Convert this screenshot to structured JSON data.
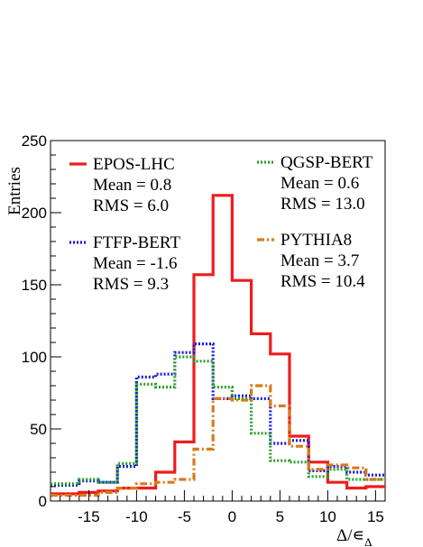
{
  "chart_data": {
    "type": "histogram",
    "xlabel": "Δ/∊",
    "xlabel_sub": "Δ",
    "ylabel": "Entries",
    "xlim": [
      -19,
      16
    ],
    "ylim": [
      0,
      250
    ],
    "x_ticks": [
      -15,
      -10,
      -5,
      0,
      5,
      10,
      15
    ],
    "y_ticks": [
      0,
      50,
      100,
      150,
      200,
      250
    ],
    "bin_edges": [
      -19,
      -16,
      -14,
      -12,
      -10,
      -8,
      -6,
      -4,
      -2,
      0,
      2,
      4,
      6,
      8,
      10,
      12,
      14,
      16
    ],
    "series": [
      {
        "name": "EPOS-LHC",
        "mean_label": "Mean = 0.8",
        "rms_label": "RMS = 6.0",
        "color": "#ee1c1c",
        "dash": "",
        "values": [
          5,
          6,
          7,
          9,
          9,
          20,
          41,
          157,
          212,
          153,
          116,
          102,
          45,
          27,
          13,
          9,
          10
        ]
      },
      {
        "name": "FTFP-BERT",
        "mean_label": "Mean = -1.6",
        "rms_label": "RMS = 9.3",
        "color": "#1a1ae0",
        "dash": "2,2",
        "values": [
          11,
          14,
          13,
          24,
          86,
          88,
          103,
          109,
          71,
          73,
          71,
          40,
          42,
          21,
          24,
          20,
          18
        ]
      },
      {
        "name": "QGSP-BERT",
        "mean_label": "Mean = 0.6",
        "rms_label": "RMS = 13.0",
        "color": "#2ca02c",
        "dash": "2,2",
        "values": [
          12,
          15,
          13,
          26,
          81,
          79,
          100,
          97,
          79,
          71,
          47,
          28,
          27,
          17,
          22,
          15,
          15
        ]
      },
      {
        "name": "PYTHIA8",
        "mean_label": "Mean = 3.7",
        "rms_label": "RMS = 10.4",
        "color": "#d97a1a",
        "dash": "8,3,2,3",
        "values": [
          4,
          4,
          6,
          9,
          12,
          13,
          15,
          36,
          71,
          70,
          80,
          66,
          38,
          22,
          25,
          23,
          15
        ]
      }
    ]
  }
}
